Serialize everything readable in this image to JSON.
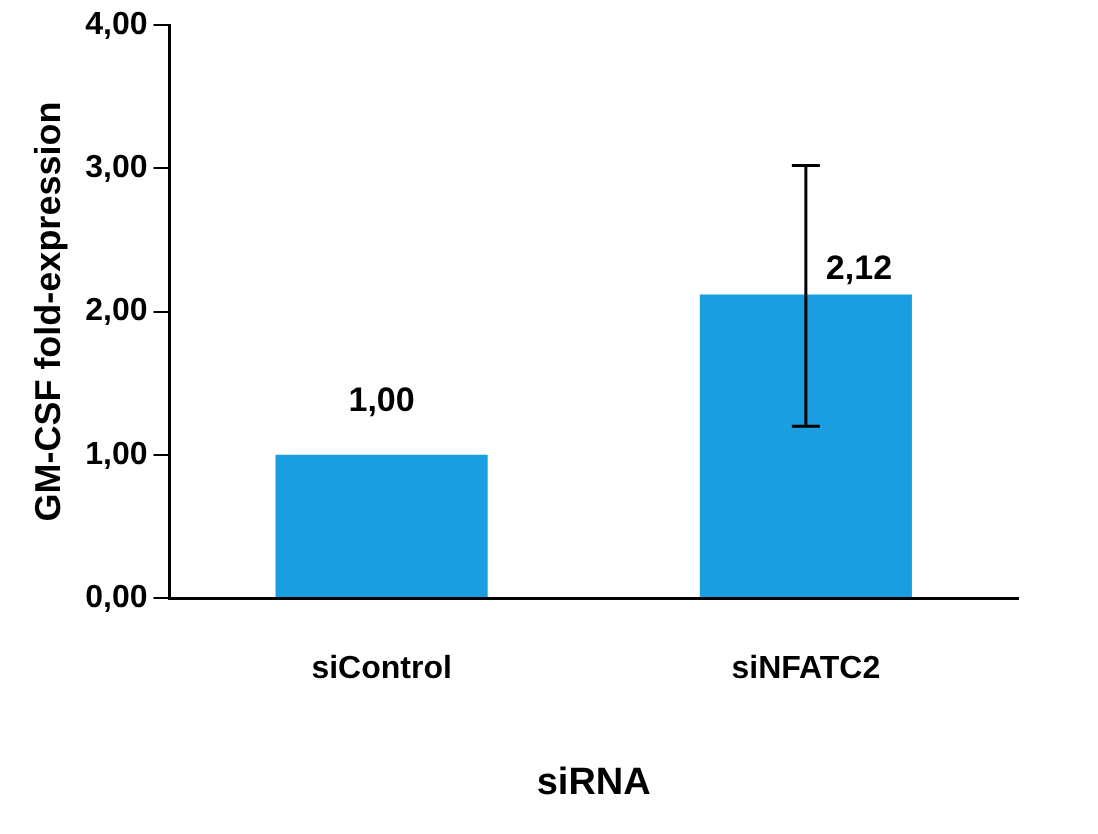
{
  "chart_data": {
    "type": "bar",
    "xlabel": "siRNA",
    "ylabel": "GM-CSF fold-expression",
    "categories": [
      "siControl",
      "siNFATC2"
    ],
    "values": [
      1.0,
      2.12
    ],
    "color": "#1a9ee0",
    "errors": [
      null,
      [
        1.2,
        3.02
      ]
    ],
    "value_labels": [
      "1,00",
      "2,12"
    ],
    "ylim": [
      0,
      4
    ],
    "yticks": [
      {
        "value": 0,
        "label": "0,00"
      },
      {
        "value": 1,
        "label": "1,00"
      },
      {
        "value": 2,
        "label": "2,00"
      },
      {
        "value": 3,
        "label": "3,00"
      },
      {
        "value": 4,
        "label": "4,00"
      }
    ],
    "grid": false,
    "legend": false
  }
}
